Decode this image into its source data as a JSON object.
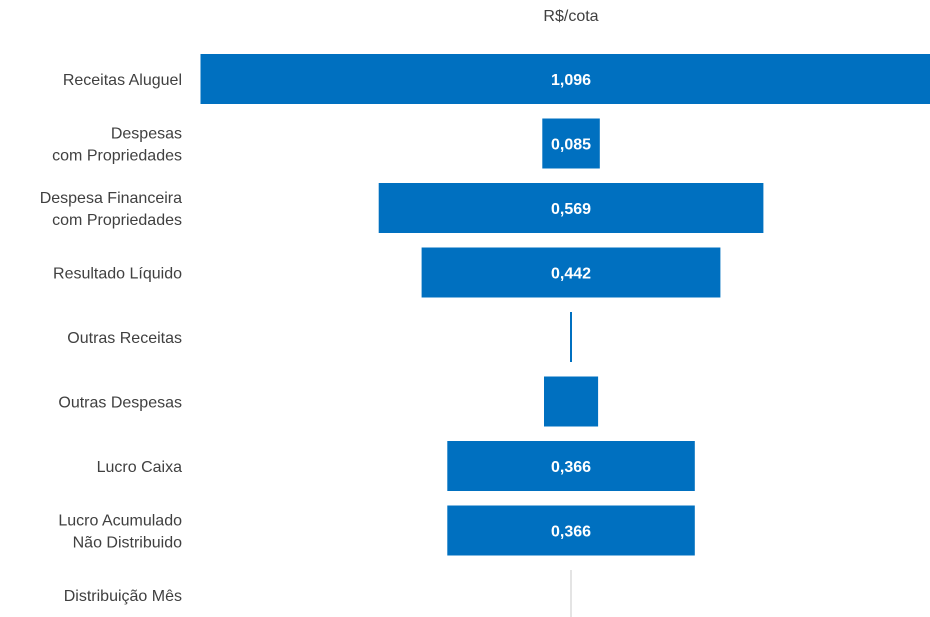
{
  "chart_data": {
    "type": "bar",
    "subtype": "funnel",
    "unit_label": "R$/cota",
    "bar_color": "#0070C0",
    "categories": [
      [
        "Receitas Aluguel"
      ],
      [
        "Despesas",
        "com Propriedades"
      ],
      [
        "Despesa Financeira",
        "com Propriedades"
      ],
      [
        "Resultado Líquido"
      ],
      [
        "Outras Receitas"
      ],
      [
        "Outras Despesas"
      ],
      [
        "Lucro Caixa"
      ],
      [
        "Lucro Acumulado",
        "Não Distribuido"
      ],
      [
        "Distribuição Mês"
      ]
    ],
    "values": [
      1.096,
      0.085,
      0.569,
      0.442,
      0.003,
      0.08,
      0.366,
      0.366,
      0.0
    ],
    "data_labels": [
      "1,096",
      "0,085",
      "0,569",
      "0,442",
      "",
      "",
      "0,366",
      "0,366",
      ""
    ]
  }
}
